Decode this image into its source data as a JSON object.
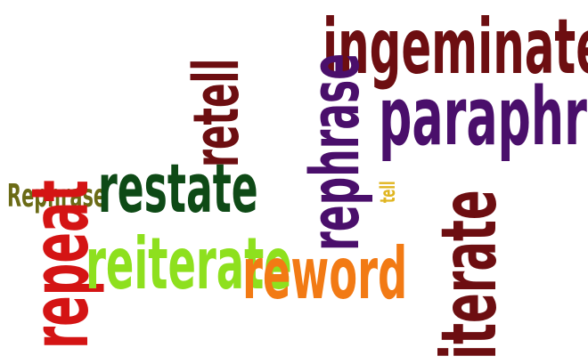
{
  "word_cloud": {
    "words": [
      {
        "text": "ingeminate",
        "color": "#6d0e11",
        "orientation": "horizontal"
      },
      {
        "text": "paraphrase",
        "color": "#4a0f6b",
        "orientation": "horizontal"
      },
      {
        "text": "retell",
        "color": "#6d0e11",
        "orientation": "vertical"
      },
      {
        "text": "rephrase",
        "color": "#4a0f6b",
        "orientation": "vertical"
      },
      {
        "text": "tell",
        "color": "#e0b520",
        "orientation": "vertical"
      },
      {
        "text": "Rephrase",
        "color": "#6b6b16",
        "orientation": "horizontal"
      },
      {
        "text": "restate",
        "color": "#0e4a16",
        "orientation": "horizontal"
      },
      {
        "text": "repeat",
        "color": "#d41414",
        "orientation": "vertical"
      },
      {
        "text": "reiterate",
        "color": "#8ee01e",
        "orientation": "horizontal"
      },
      {
        "text": "reword",
        "color": "#f27a14",
        "orientation": "horizontal"
      },
      {
        "text": "iterate",
        "color": "#6d0e11",
        "orientation": "vertical"
      }
    ]
  }
}
